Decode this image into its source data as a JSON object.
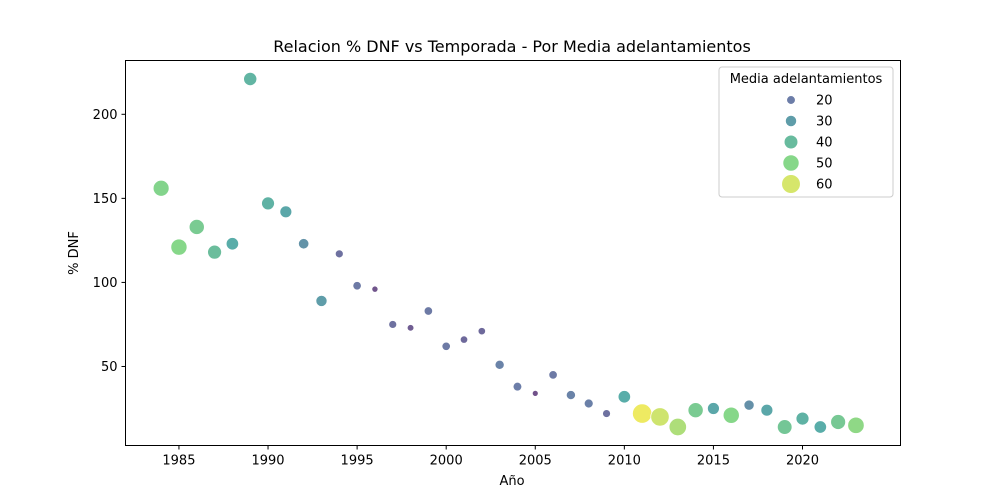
{
  "chart_data": {
    "type": "scatter",
    "title": "Relacion % DNF vs Temporada - Por Media adelantamientos",
    "xlabel": "Año",
    "ylabel": "% DNF",
    "xlim": [
      1982,
      2025.5
    ],
    "ylim": [
      3,
      232
    ],
    "xticks": [
      1985,
      1990,
      1995,
      2000,
      2005,
      2010,
      2015,
      2020
    ],
    "yticks": [
      50,
      100,
      150,
      200
    ],
    "grid": false,
    "legend": {
      "title": "Media adelantamientos",
      "placement": "top-right",
      "levels": [
        20,
        30,
        40,
        50,
        60
      ]
    },
    "size_range": [
      5,
      65
    ],
    "color_scale": "viridis",
    "points": [
      {
        "x": 1984,
        "y": 156,
        "size": 49
      },
      {
        "x": 1985,
        "y": 121,
        "size": 50
      },
      {
        "x": 1986,
        "y": 133,
        "size": 46
      },
      {
        "x": 1987,
        "y": 118,
        "size": 41
      },
      {
        "x": 1988,
        "y": 123,
        "size": 35
      },
      {
        "x": 1989,
        "y": 221,
        "size": 38
      },
      {
        "x": 1990,
        "y": 147,
        "size": 37
      },
      {
        "x": 1991,
        "y": 142,
        "size": 33
      },
      {
        "x": 1992,
        "y": 123,
        "size": 27
      },
      {
        "x": 1993,
        "y": 89,
        "size": 30
      },
      {
        "x": 1994,
        "y": 117,
        "size": 17
      },
      {
        "x": 1995,
        "y": 98,
        "size": 19
      },
      {
        "x": 1996,
        "y": 96,
        "size": 10
      },
      {
        "x": 1997,
        "y": 75,
        "size": 17
      },
      {
        "x": 1998,
        "y": 73,
        "size": 12
      },
      {
        "x": 1999,
        "y": 83,
        "size": 19
      },
      {
        "x": 2000,
        "y": 62,
        "size": 19
      },
      {
        "x": 2001,
        "y": 66,
        "size": 15
      },
      {
        "x": 2002,
        "y": 71,
        "size": 15
      },
      {
        "x": 2003,
        "y": 51,
        "size": 22
      },
      {
        "x": 2004,
        "y": 38,
        "size": 20
      },
      {
        "x": 2005,
        "y": 34,
        "size": 9
      },
      {
        "x": 2006,
        "y": 45,
        "size": 19
      },
      {
        "x": 2007,
        "y": 33,
        "size": 22
      },
      {
        "x": 2008,
        "y": 28,
        "size": 21
      },
      {
        "x": 2009,
        "y": 22,
        "size": 17
      },
      {
        "x": 2010,
        "y": 32,
        "size": 35
      },
      {
        "x": 2011,
        "y": 22,
        "size": 63
      },
      {
        "x": 2012,
        "y": 20,
        "size": 59
      },
      {
        "x": 2013,
        "y": 14,
        "size": 55
      },
      {
        "x": 2014,
        "y": 24,
        "size": 46
      },
      {
        "x": 2015,
        "y": 25,
        "size": 33
      },
      {
        "x": 2016,
        "y": 21,
        "size": 50
      },
      {
        "x": 2017,
        "y": 27,
        "size": 26
      },
      {
        "x": 2018,
        "y": 24,
        "size": 33
      },
      {
        "x": 2019,
        "y": 14,
        "size": 44
      },
      {
        "x": 2020,
        "y": 19,
        "size": 37
      },
      {
        "x": 2021,
        "y": 14,
        "size": 35
      },
      {
        "x": 2022,
        "y": 17,
        "size": 45
      },
      {
        "x": 2023,
        "y": 15,
        "size": 51
      }
    ]
  }
}
